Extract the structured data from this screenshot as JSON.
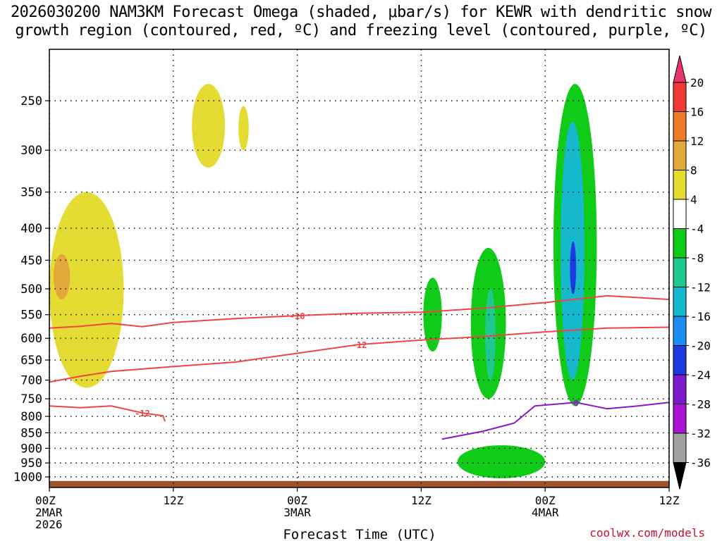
{
  "title_line1": "2026030200 NAM3KM Forecast Omega (shaded, μbar/s) for KEWR with dendritic snow",
  "title_line2": "growth region (contoured, red, ºC) and freezing level (contoured, purple, ºC)",
  "credit": "coolwx.com/models",
  "chart_data": {
    "type": "heatmap",
    "xlabel": "Forecast Time (UTC)",
    "ylabel": "",
    "x_ticks": [
      {
        "hours": 0,
        "lines": [
          "00Z",
          "2MAR",
          "2026"
        ]
      },
      {
        "hours": 12,
        "lines": [
          "12Z"
        ]
      },
      {
        "hours": 24,
        "lines": [
          "00Z",
          "3MAR"
        ]
      },
      {
        "hours": 36,
        "lines": [
          "12Z"
        ]
      },
      {
        "hours": 48,
        "lines": [
          "00Z",
          "4MAR"
        ]
      },
      {
        "hours": 60,
        "lines": [
          "12Z"
        ]
      }
    ],
    "xlim_hours": [
      0,
      60
    ],
    "y_ticks_hPa": [
      250,
      300,
      350,
      400,
      450,
      500,
      550,
      600,
      650,
      700,
      750,
      800,
      850,
      900,
      950,
      1000
    ],
    "ylim_hPa": [
      200,
      1050
    ],
    "colorbar": {
      "labels": [
        "20",
        "16",
        "12",
        "8",
        "4",
        "-4",
        "-8",
        "-12",
        "-16",
        "-20",
        "-24",
        "-28",
        "-32",
        "-36"
      ],
      "colors": [
        "#e8336b",
        "#ee3a35",
        "#ec7a26",
        "#e2a83a",
        "#e5dc33",
        "#ffffff",
        "#10cc18",
        "#20c890",
        "#16b8cc",
        "#1b8ef0",
        "#1e3ae0",
        "#7d1acb",
        "#a814d2",
        "#a0a0a0",
        "#000000"
      ]
    },
    "series": [
      {
        "name": "-18",
        "color": "#f04444",
        "points": [
          [
            0,
            578
          ],
          [
            3,
            574
          ],
          [
            6,
            568
          ],
          [
            9,
            575
          ],
          [
            12,
            566
          ],
          [
            18,
            558
          ],
          [
            24,
            552
          ],
          [
            30,
            547
          ],
          [
            36,
            545
          ],
          [
            42,
            537
          ],
          [
            48,
            526
          ],
          [
            54,
            513
          ],
          [
            60,
            520
          ]
        ]
      },
      {
        "name": "-12",
        "color": "#f04444",
        "points": [
          [
            0,
            705
          ],
          [
            3,
            690
          ],
          [
            6,
            678
          ],
          [
            12,
            666
          ],
          [
            18,
            655
          ],
          [
            24,
            634
          ],
          [
            30,
            614
          ],
          [
            36,
            604
          ],
          [
            42,
            596
          ],
          [
            48,
            586
          ],
          [
            54,
            578
          ],
          [
            60,
            576
          ]
        ]
      },
      {
        "name": "-12",
        "color": "#f04444",
        "points": [
          [
            0,
            770
          ],
          [
            3,
            775
          ],
          [
            6,
            770
          ],
          [
            9,
            790
          ],
          [
            11,
            798
          ],
          [
            11.2,
            815
          ]
        ]
      },
      {
        "name": "0",
        "color": "#8a16c8",
        "points": [
          [
            38,
            870
          ],
          [
            42,
            845
          ],
          [
            45,
            820
          ],
          [
            47,
            770
          ],
          [
            51,
            760
          ],
          [
            54,
            778
          ],
          [
            57,
            770
          ],
          [
            60,
            760
          ]
        ]
      }
    ],
    "omega_regions_ubar_s": [
      {
        "value": 4,
        "hours": [
          0,
          7.2
        ],
        "hPa": [
          350,
          720
        ]
      },
      {
        "value": 8,
        "hours": [
          0.4,
          2
        ],
        "hPa": [
          440,
          520
        ]
      },
      {
        "value": 4,
        "hours": [
          13.8,
          17
        ],
        "hPa": [
          235,
          320
        ]
      },
      {
        "value": 4,
        "hours": [
          18.3,
          19.3
        ],
        "hPa": [
          255,
          300
        ]
      },
      {
        "value": -4,
        "hours": [
          36.2,
          38
        ],
        "hPa": [
          480,
          630
        ]
      },
      {
        "value": -4,
        "hours": [
          40.8,
          44.2
        ],
        "hPa": [
          430,
          750
        ]
      },
      {
        "value": -8,
        "hours": [
          42.2,
          43.2
        ],
        "hPa": [
          500,
          700
        ]
      },
      {
        "value": -4,
        "hours": [
          48.8,
          53
        ],
        "hPa": [
          235,
          770
        ]
      },
      {
        "value": -12,
        "hours": [
          49.5,
          51.8
        ],
        "hPa": [
          270,
          700
        ]
      },
      {
        "value": -20,
        "hours": [
          50.4,
          51
        ],
        "hPa": [
          420,
          510
        ]
      },
      {
        "value": -4,
        "hours": [
          39.5,
          48
        ],
        "hPa": [
          890,
          1005
        ]
      }
    ]
  }
}
